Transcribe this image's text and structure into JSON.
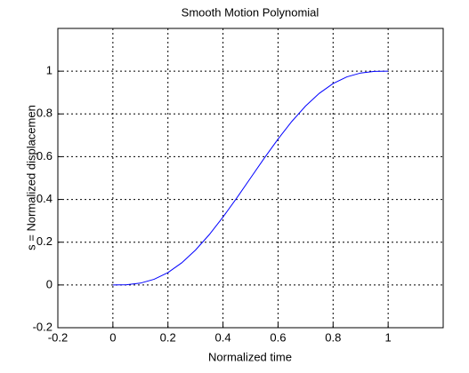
{
  "chart_data": {
    "type": "line",
    "title": "Smooth Motion Polynomial",
    "x_label": "Normalized time",
    "y_label": "s = Normalized displacemen",
    "x": [
      0,
      0.05,
      0.1,
      0.15,
      0.2,
      0.25,
      0.3,
      0.35,
      0.4,
      0.45,
      0.5,
      0.55,
      0.6,
      0.65,
      0.7,
      0.75,
      0.8,
      0.85,
      0.9,
      0.95,
      1
    ],
    "series": [
      {
        "color": "#0000ff",
        "values": [
          0,
          0.00116,
          0.00856,
          0.02661,
          0.05792,
          0.10352,
          0.16308,
          0.23518,
          0.31744,
          0.40688,
          0.5,
          0.59312,
          0.68256,
          0.76482,
          0.83692,
          0.89648,
          0.94208,
          0.97339,
          0.99144,
          0.99884,
          1
        ]
      }
    ],
    "xlim": [
      -0.2,
      1.2
    ],
    "ylim": [
      -0.2,
      1.2
    ],
    "xticks": [
      -0.2,
      0,
      0.2,
      0.4,
      0.6,
      0.8,
      1
    ],
    "yticks": [
      -0.2,
      0,
      0.2,
      0.4,
      0.6,
      0.8,
      1
    ],
    "grid": true
  }
}
